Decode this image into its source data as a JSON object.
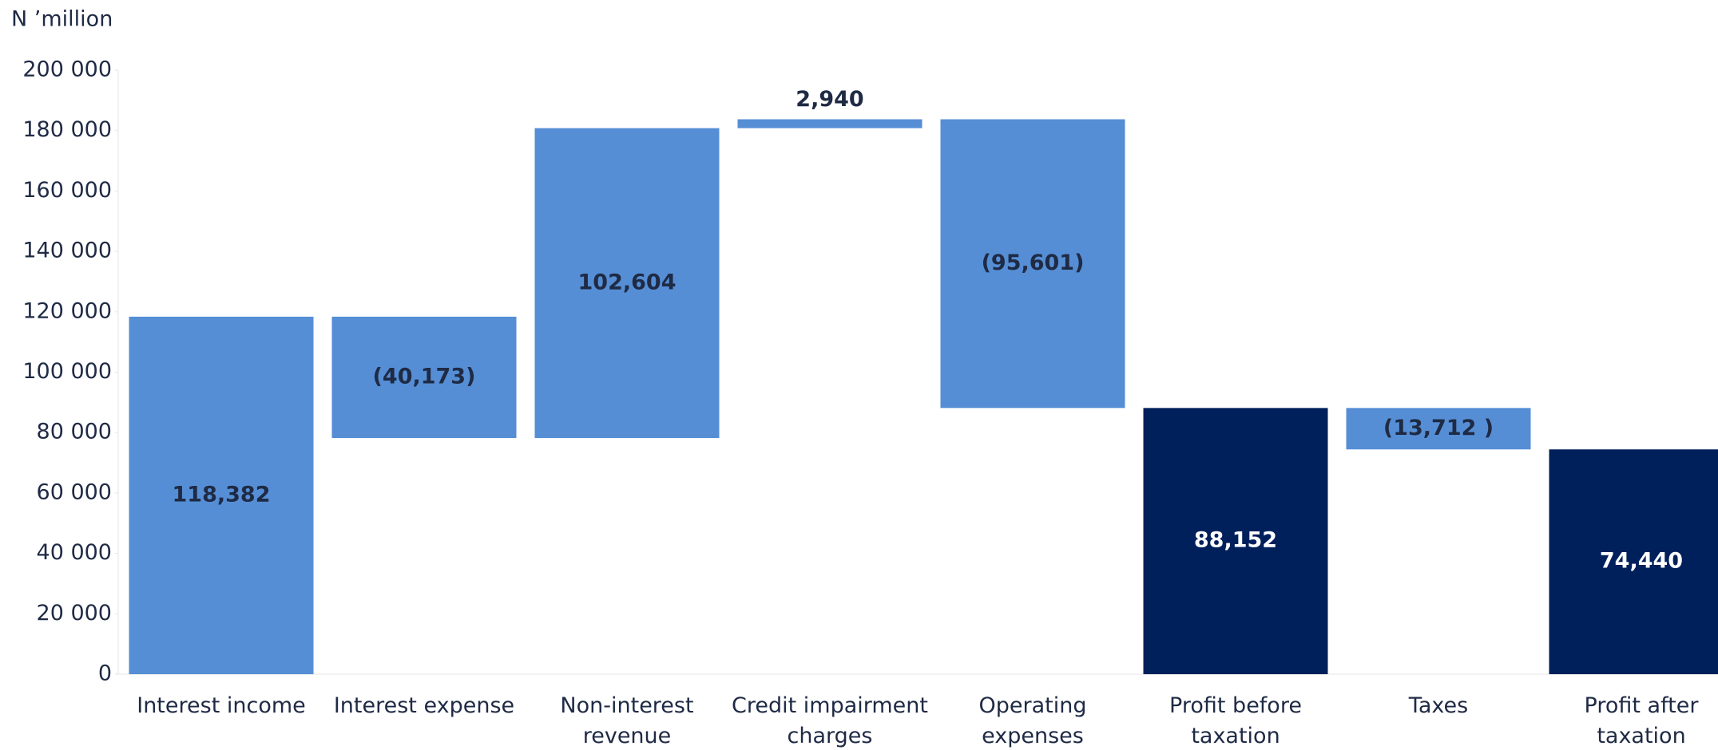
{
  "chart_data": {
    "type": "waterfall",
    "y_axis_label": "N ’million",
    "categories": [
      "Interest income",
      "Interest expense",
      "Non-interest revenue",
      "Credit impairment charges",
      "Operating expenses",
      "Profit before taxation",
      "Taxes",
      "Profit after taxation"
    ],
    "values": [
      118382,
      -40173,
      102604,
      2940,
      -95601,
      88152,
      -13712,
      74440
    ],
    "value_labels": [
      "118,382",
      "(40,173)",
      "102,604",
      "2,940",
      "(95,601)",
      "88,152",
      "(13,712 )",
      "74,440"
    ],
    "is_total": [
      false,
      false,
      false,
      false,
      false,
      true,
      false,
      true
    ],
    "colors": [
      "#558ed5",
      "#558ed5",
      "#558ed5",
      "#558ed5",
      "#558ed5",
      "#00205b",
      "#558ed5",
      "#00205b"
    ],
    "ylim": [
      0,
      200000
    ],
    "yticks": [
      {
        "value": 0,
        "label": "0"
      },
      {
        "value": 20000,
        "label": "20 000"
      },
      {
        "value": 40000,
        "label": "40 000"
      },
      {
        "value": 60000,
        "label": "60 000"
      },
      {
        "value": 80000,
        "label": "80 000"
      },
      {
        "value": 100000,
        "label": "100 000"
      },
      {
        "value": 120000,
        "label": "120 000"
      },
      {
        "value": 140000,
        "label": "140 000"
      },
      {
        "value": 160000,
        "label": "160 000"
      },
      {
        "value": 180000,
        "label": "180 000"
      },
      {
        "value": 200000,
        "label": "200 000"
      }
    ],
    "grid": false
  }
}
